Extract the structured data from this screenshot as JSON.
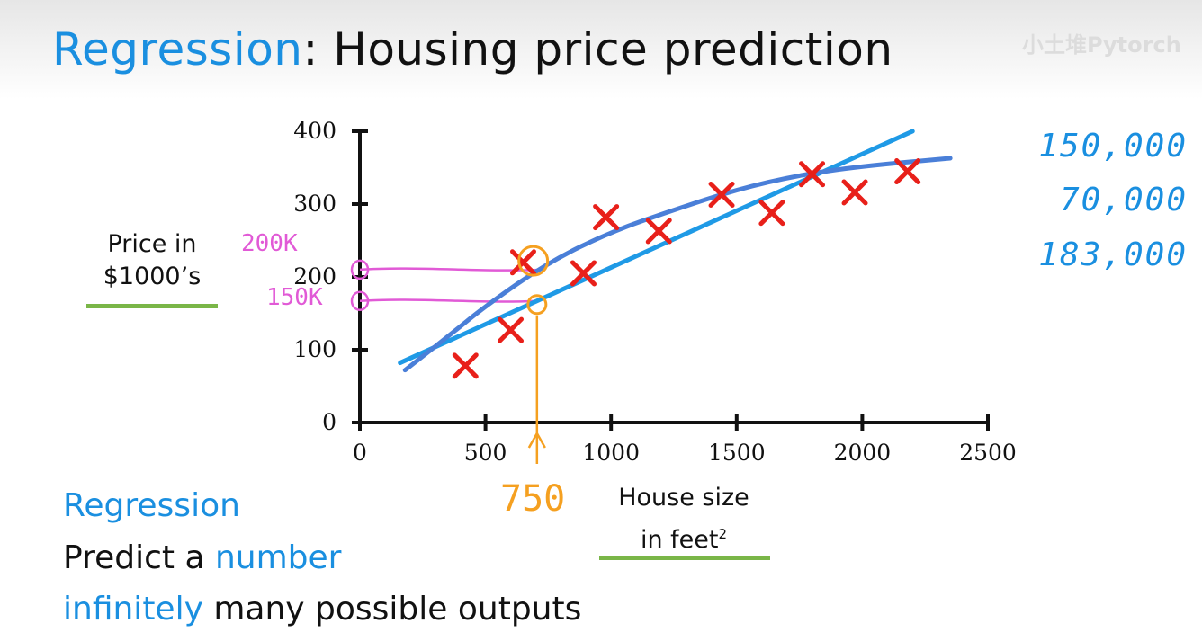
{
  "slide": {
    "title_accent": "Regression",
    "title_rest": ": Housing price prediction",
    "watermark": "小土堆Pytorch"
  },
  "axes": {
    "ylabel_line1": "Price in",
    "ylabel_line2": "$1000’s",
    "xlabel_line1": "House size",
    "xlabel_line2": "in feet",
    "xlabel_sup": "2"
  },
  "handwriting": {
    "right_values": [
      "150,000",
      "70,000",
      "183,000"
    ],
    "pink_200k": "200K",
    "pink_150k": "150K",
    "orange_750": "750"
  },
  "bottom": {
    "heading": "Regression",
    "line1_plain": "Predict a ",
    "line1_blue": "number",
    "line2_blue": "infinitely",
    "line2_plain": " many possible outputs"
  },
  "colors": {
    "accent_blue": "#1a8fe0",
    "marker_red": "#e8201a",
    "fit_line": "#1f9ae6",
    "fit_curve": "#4a7fd8",
    "pink": "#e15ad6",
    "orange": "#f5a020",
    "underline_green": "#7ab648"
  },
  "chart_data": {
    "type": "scatter",
    "xlim": [
      0,
      2500
    ],
    "ylim": [
      0,
      400
    ],
    "x_ticks": [
      0,
      500,
      1000,
      1500,
      2000,
      2500
    ],
    "y_ticks": [
      0,
      100,
      200,
      300,
      400
    ],
    "grid": false,
    "marker": "x",
    "points": [
      {
        "x": 420,
        "y": 78
      },
      {
        "x": 600,
        "y": 127
      },
      {
        "x": 650,
        "y": 220
      },
      {
        "x": 890,
        "y": 205
      },
      {
        "x": 980,
        "y": 282
      },
      {
        "x": 1190,
        "y": 263
      },
      {
        "x": 1440,
        "y": 313
      },
      {
        "x": 1640,
        "y": 288
      },
      {
        "x": 1800,
        "y": 341
      },
      {
        "x": 1970,
        "y": 316
      },
      {
        "x": 2180,
        "y": 345
      }
    ],
    "fits": [
      {
        "kind": "linear",
        "x": [
          160,
          2200
        ],
        "y": [
          82,
          400
        ]
      },
      {
        "kind": "curve",
        "x": [
          180,
          350,
          500,
          750,
          1000,
          1250,
          1500,
          1750,
          2000,
          2350
        ],
        "y": [
          72,
          118,
          160,
          220,
          262,
          292,
          320,
          340,
          352,
          363
        ]
      }
    ],
    "annotations": [
      {
        "kind": "horizontal-guide",
        "y": 210,
        "x_start": 0,
        "x_end": 720
      },
      {
        "kind": "horizontal-guide",
        "y": 167,
        "x_start": 0,
        "x_end": 700
      },
      {
        "kind": "circle",
        "x": 690,
        "y": 222
      },
      {
        "kind": "circle",
        "x": 705,
        "y": 162
      },
      {
        "kind": "vertical-guide",
        "x": 705,
        "y_end": -5
      }
    ]
  }
}
